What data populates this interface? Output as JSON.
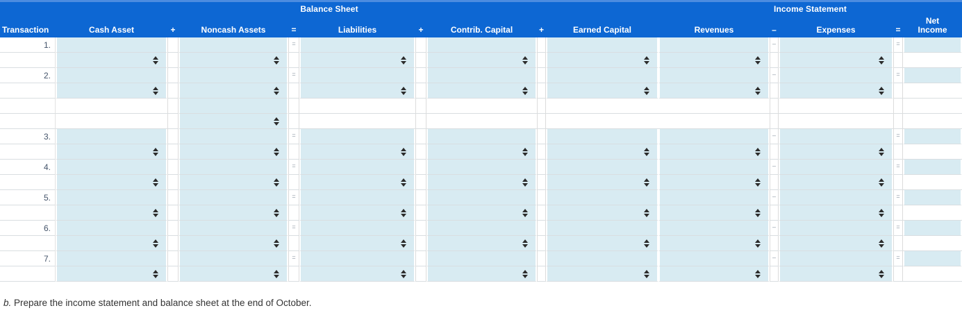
{
  "colors": {
    "header_blue": "#0d67d3",
    "header_blue_light": "#4c8ce0",
    "cell_blue": "#d8ebf2",
    "grid_line": "#d9dee1",
    "separator_symbol_gray": "#8c98a4"
  },
  "header": {
    "balance_sheet_title": "Balance Sheet",
    "income_statement_title": "Income Statement",
    "columns": [
      {
        "id": "transaction",
        "label": "Transaction",
        "kind": "label"
      },
      {
        "id": "cash",
        "label": "Cash Asset",
        "kind": "value"
      },
      {
        "id": "sep1",
        "label": "+",
        "kind": "sep",
        "body_symbol": ""
      },
      {
        "id": "noncash",
        "label": "Noncash Assets",
        "kind": "value"
      },
      {
        "id": "sep2",
        "label": "=",
        "kind": "sep",
        "body_symbol": "="
      },
      {
        "id": "liabilities",
        "label": "Liabilities",
        "kind": "value"
      },
      {
        "id": "sep3",
        "label": "+",
        "kind": "sep",
        "body_symbol": ""
      },
      {
        "id": "contrib",
        "label": "Contrib. Capital",
        "kind": "value"
      },
      {
        "id": "sep4",
        "label": "+",
        "kind": "sep",
        "body_symbol": ""
      },
      {
        "id": "earned",
        "label": "Earned Capital",
        "kind": "value"
      },
      {
        "id": "revenues",
        "label": "Revenues",
        "kind": "value"
      },
      {
        "id": "sep5",
        "label": "–",
        "kind": "sep",
        "body_symbol": "–"
      },
      {
        "id": "expenses",
        "label": "Expenses",
        "kind": "value"
      },
      {
        "id": "sep6",
        "label": "=",
        "kind": "sep",
        "body_symbol": "="
      },
      {
        "id": "net",
        "label": "Net\nIncome",
        "kind": "value",
        "no_dropdown": true
      }
    ]
  },
  "rows": [
    {
      "type": "entry",
      "label": "1."
    },
    {
      "type": "dropdown"
    },
    {
      "type": "entry",
      "label": "2."
    },
    {
      "type": "dropdown"
    },
    {
      "type": "entry-extra"
    },
    {
      "type": "dropdown-extra"
    },
    {
      "type": "entry",
      "label": "3."
    },
    {
      "type": "dropdown"
    },
    {
      "type": "entry",
      "label": "4."
    },
    {
      "type": "dropdown"
    },
    {
      "type": "entry",
      "label": "5."
    },
    {
      "type": "dropdown"
    },
    {
      "type": "entry",
      "label": "6."
    },
    {
      "type": "dropdown"
    },
    {
      "type": "entry",
      "label": "7."
    },
    {
      "type": "dropdown"
    }
  ],
  "footer": {
    "instruction_prefix": "b.",
    "instruction_text": " Prepare the income statement and balance sheet at the end of October."
  }
}
